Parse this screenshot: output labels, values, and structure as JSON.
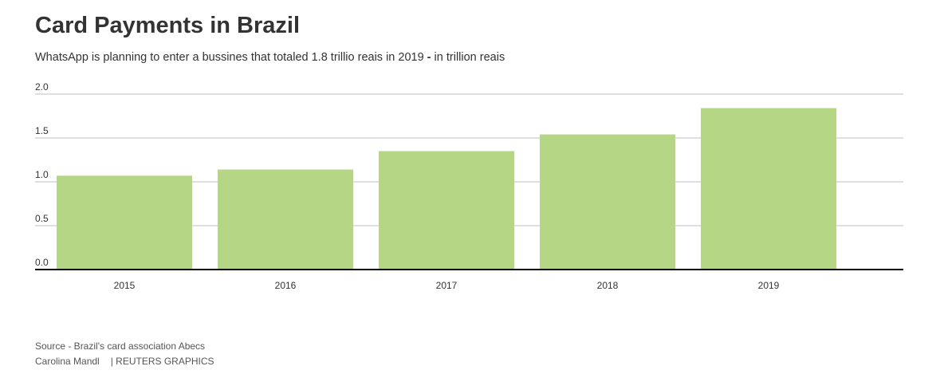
{
  "header": {
    "title": "Card Payments in Brazil",
    "subtitle_main": "WhatsApp is planning to enter a bussines that totaled 1.8 trillio reais in 2019",
    "subtitle_sep": " - ",
    "subtitle_unit": "in trillion reais"
  },
  "footer": {
    "source": "Source - Brazil's card association Abecs",
    "author": "Carolina Mandl",
    "agency": "| REUTERS GRAPHICS"
  },
  "chart_data": {
    "type": "bar",
    "title": "Card Payments in Brazil",
    "categories": [
      "2015",
      "2016",
      "2017",
      "2018",
      "2019"
    ],
    "values": [
      1.07,
      1.14,
      1.35,
      1.54,
      1.84
    ],
    "ylim": [
      0,
      2.0
    ],
    "yticks": [
      "0.0",
      "0.5",
      "1.0",
      "1.5",
      "2.0"
    ],
    "xlabel": "",
    "ylabel": "",
    "grid": true,
    "colors": {
      "bar": "#b5d685",
      "grid": "#cccccc",
      "axis": "#000000",
      "text": "#333333"
    }
  }
}
